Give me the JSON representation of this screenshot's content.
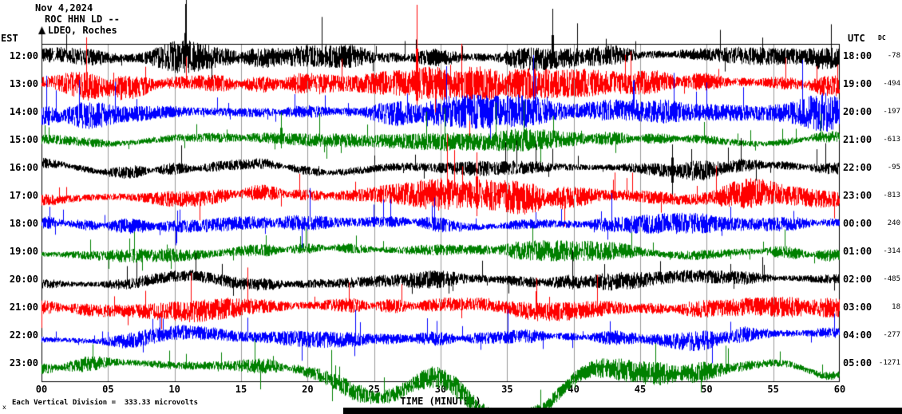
{
  "header": {
    "date": "Nov 4,2024",
    "station": "ROC HHN LD --",
    "network": "LDEO, Roches"
  },
  "axes": {
    "left_unit": "EST",
    "right_unit": "UTC",
    "dc_header": "DC",
    "x_title": "TIME (MINUTES)"
  },
  "footer": {
    "marker": "x",
    "scale_note": "Each Vertical Division =  333.33 microvolts"
  },
  "chart_data": {
    "type": "line",
    "title": "ROC HHN LD helicorder seismogram, Nov 4,2024",
    "x_label": "TIME (MINUTES)",
    "x_range": [
      0,
      60
    ],
    "x_tick_interval": 5,
    "x_ticks": [
      "00",
      "05",
      "10",
      "15",
      "20",
      "25",
      "30",
      "35",
      "40",
      "45",
      "50",
      "55",
      "60"
    ],
    "vertical_division_microvolts": 333.33,
    "grid": true,
    "colors": {
      "black": "#000000",
      "red": "#ff0000",
      "blue": "#0000ff",
      "green": "#008000"
    },
    "rows": [
      {
        "est": "12:00",
        "utc": "18:00",
        "dc": -78,
        "color": "black",
        "seed": 101,
        "amp": 9,
        "wander": 3,
        "bursts": [
          [
            180,
            10,
            25
          ],
          [
            320,
            7,
            60
          ],
          [
            660,
            8,
            40
          ],
          [
            950,
            6,
            40
          ]
        ],
        "spikes": [
          [
            180,
            66,
            12
          ],
          [
            640,
            60,
            12
          ]
        ]
      },
      {
        "est": "13:00",
        "utc": "19:00",
        "dc": -494,
        "color": "red",
        "seed": 202,
        "amp": 11,
        "wander": 4,
        "bursts": [
          [
            60,
            6,
            40
          ],
          [
            500,
            13,
            90
          ],
          [
            700,
            7,
            50
          ]
        ],
        "spikes": [
          [
            470,
            100,
            45
          ]
        ]
      },
      {
        "est": "14:00",
        "utc": "20:00",
        "dc": -197,
        "color": "blue",
        "seed": 303,
        "amp": 10,
        "wander": 4,
        "bursts": [
          [
            90,
            6,
            50
          ],
          [
            560,
            15,
            70
          ],
          [
            820,
            6,
            40
          ],
          [
            980,
            12,
            35
          ]
        ],
        "spikes": []
      },
      {
        "est": "15:00",
        "utc": "21:00",
        "dc": -613,
        "color": "green",
        "seed": 404,
        "amp": 7,
        "wander": 4,
        "bursts": [
          [
            350,
            5,
            60
          ],
          [
            560,
            8,
            80
          ]
        ],
        "spikes": [
          [
            300,
            35,
            10
          ]
        ]
      },
      {
        "est": "16:00",
        "utc": "22:00",
        "dc": -95,
        "color": "black",
        "seed": 505,
        "amp": 7,
        "wander": 6,
        "bursts": [
          [
            550,
            6,
            50
          ],
          [
            820,
            5,
            50
          ]
        ],
        "spikes": [
          [
            790,
            30,
            40
          ]
        ]
      },
      {
        "est": "17:00",
        "utc": "23:00",
        "dc": -813,
        "color": "red",
        "seed": 606,
        "amp": 10,
        "wander": 4,
        "bursts": [
          [
            545,
            12,
            70
          ],
          [
            900,
            7,
            60
          ]
        ],
        "spikes": [
          [
            545,
            55,
            25
          ]
        ]
      },
      {
        "est": "18:00",
        "utc": "00:00",
        "dc": 240,
        "color": "blue",
        "seed": 707,
        "amp": 8,
        "wander": 3,
        "bursts": [
          [
            250,
            4,
            50
          ],
          [
            820,
            6,
            60
          ]
        ],
        "spikes": []
      },
      {
        "est": "19:00",
        "utc": "01:00",
        "dc": -314,
        "color": "green",
        "seed": 808,
        "amp": 7,
        "wander": 5,
        "bursts": [
          [
            130,
            5,
            40
          ],
          [
            650,
            5,
            60
          ]
        ],
        "spikes": []
      },
      {
        "est": "20:00",
        "utc": "02:00",
        "dc": -485,
        "color": "black",
        "seed": 909,
        "amp": 7,
        "wander": 5,
        "bursts": [
          [
            450,
            5,
            70
          ],
          [
            700,
            4,
            50
          ]
        ],
        "spikes": []
      },
      {
        "est": "21:00",
        "utc": "03:00",
        "dc": 18,
        "color": "red",
        "seed": 1010,
        "amp": 9,
        "wander": 5,
        "bursts": [
          [
            200,
            5,
            60
          ],
          [
            640,
            6,
            60
          ],
          [
            950,
            5,
            40
          ]
        ],
        "spikes": []
      },
      {
        "est": "22:00",
        "utc": "04:00",
        "dc": -277,
        "color": "blue",
        "seed": 1111,
        "amp": 7,
        "wander": 7,
        "bursts": [
          [
            170,
            6,
            40
          ],
          [
            350,
            5,
            70
          ],
          [
            820,
            5,
            60
          ]
        ],
        "spikes": []
      },
      {
        "est": "23:00",
        "utc": "05:00",
        "dc": -1271,
        "color": "green",
        "seed": 1212,
        "amp": 8,
        "wander": 8,
        "bursts": [
          [
            500,
            6,
            80
          ],
          [
            780,
            6,
            60
          ]
        ],
        "dips": [
          [
            430,
            48,
            40
          ],
          [
            565,
            60,
            35
          ],
          [
            625,
            42,
            30
          ],
          [
            800,
            20,
            60
          ],
          [
            985,
            15,
            25
          ]
        ],
        "spikes": []
      }
    ]
  }
}
